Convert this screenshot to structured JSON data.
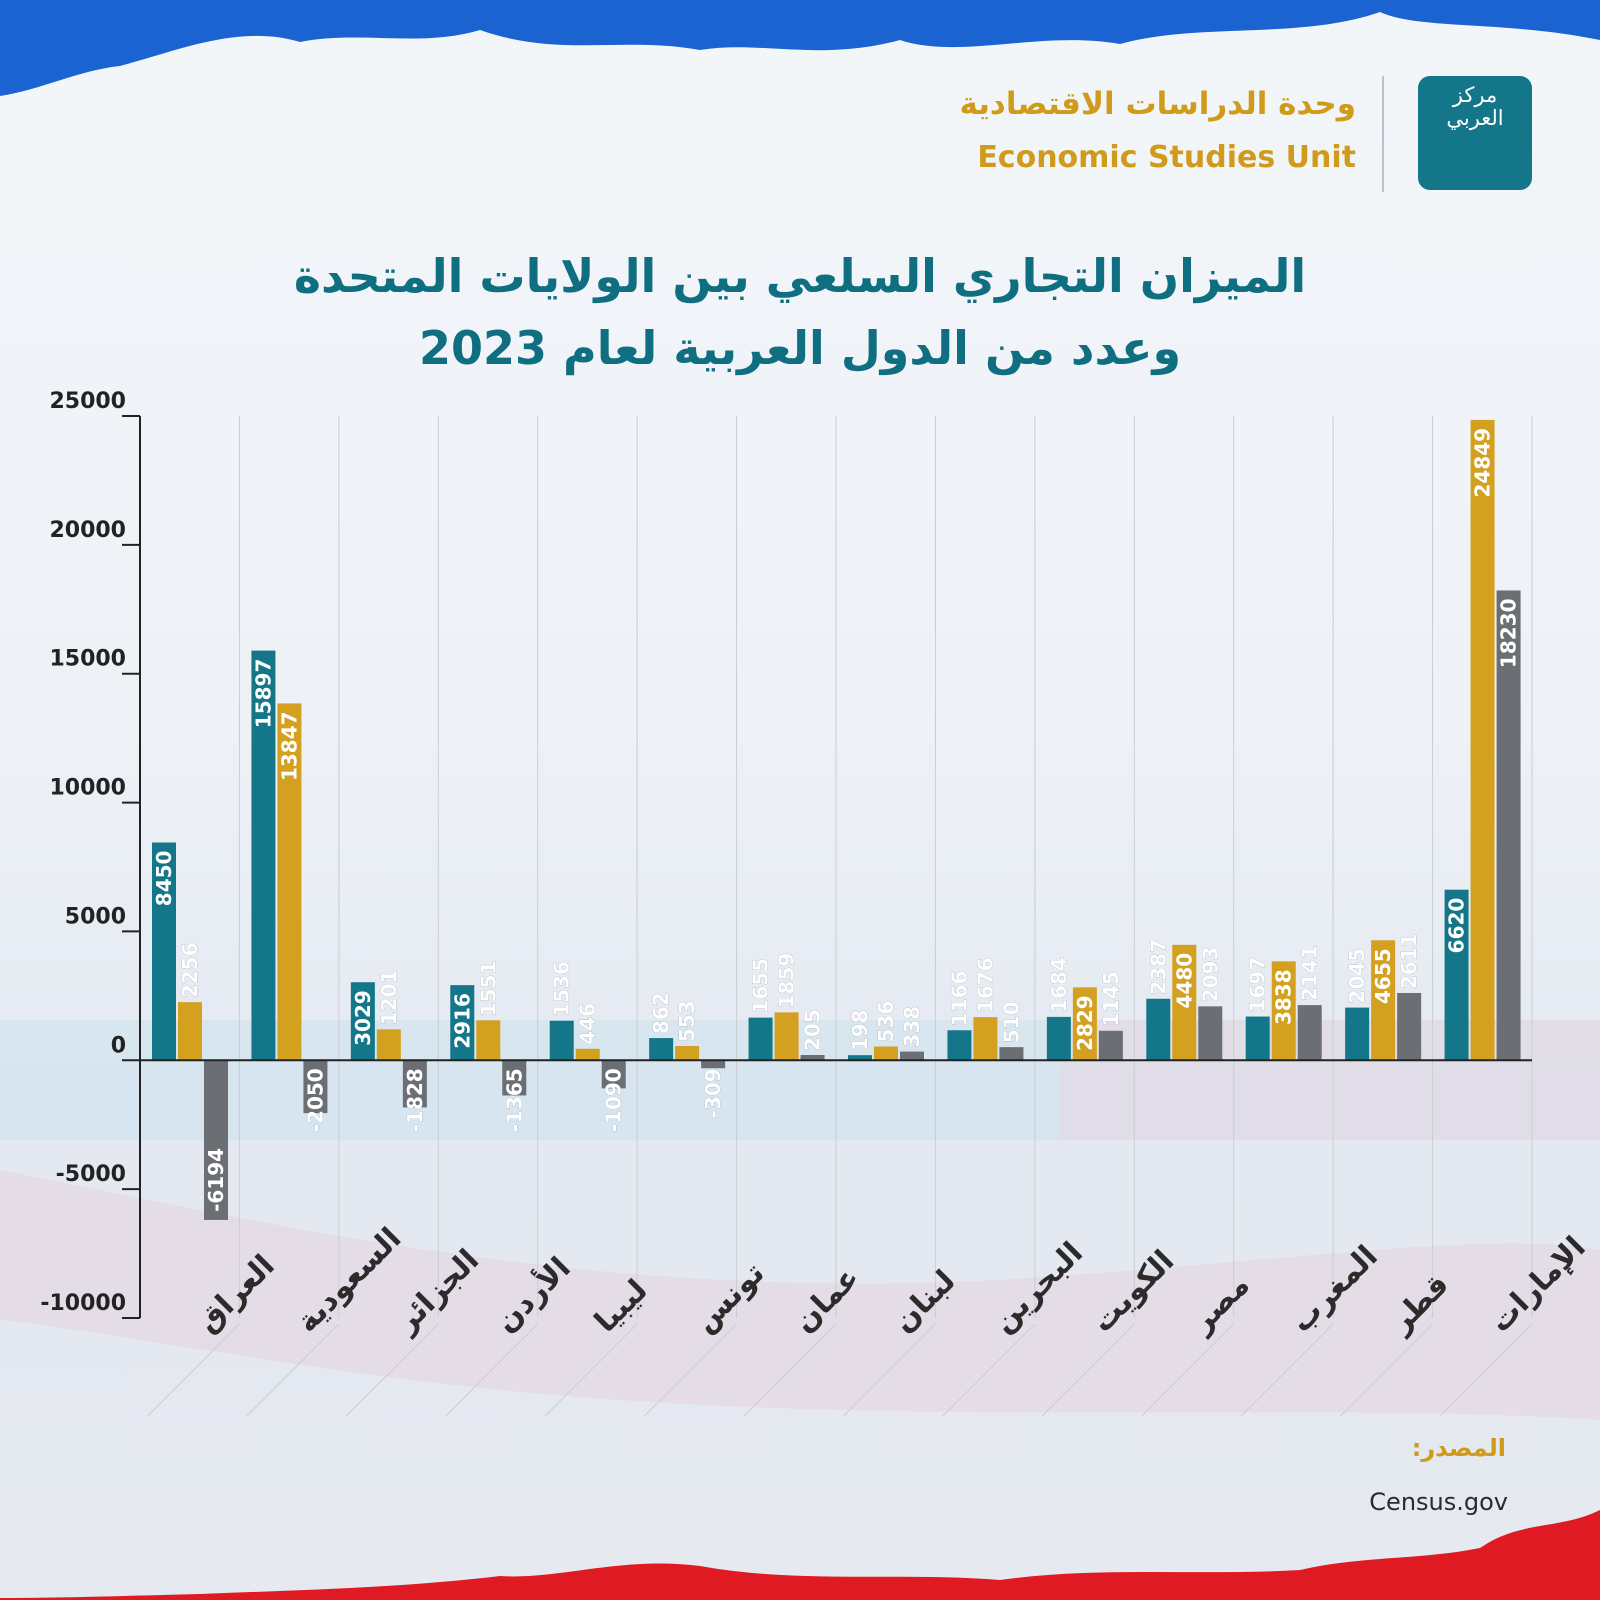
{
  "header": {
    "unit_ar": "وحدة الدراسات الاقتصادية",
    "unit_en": "Economic Studies Unit",
    "logo_text": "مركز العربي"
  },
  "title": {
    "line1": "الميزان التجاري السلعي بين الولايات المتحدة",
    "line2": "وعدد من الدول العربية لعام 2023"
  },
  "source": {
    "label": "المصدر:",
    "value": "Census.gov"
  },
  "colors": {
    "teal": "#137789",
    "gold": "#d4a020",
    "gray": "#6b6e73",
    "title": "#0f6f81",
    "accent_blue": "#1a63d1",
    "accent_red": "#e01a22"
  },
  "chart_data": {
    "type": "bar",
    "categories": [
      "العراق",
      "السعودية",
      "الجزائر",
      "الأردن",
      "ليبيا",
      "تونس",
      "عمان",
      "لبنان",
      "البحرين",
      "الكويت",
      "مصر",
      "المغرب",
      "قطر",
      "الإمارات"
    ],
    "series": [
      {
        "color": "#137789",
        "values": [
          8450,
          15897,
          3029,
          2916,
          1536,
          862,
          1655,
          198,
          1166,
          1684,
          2387,
          1697,
          2045,
          6620
        ]
      },
      {
        "color": "#d4a020",
        "values": [
          2256,
          13847,
          1201,
          1551,
          446,
          553,
          1859,
          536,
          1676,
          2829,
          4480,
          3838,
          4655,
          24849
        ]
      },
      {
        "color": "#6b6e73",
        "values": [
          -6194,
          -2050,
          -1828,
          -1365,
          -1090,
          -309,
          205,
          338,
          510,
          1145,
          2093,
          2141,
          2611,
          18230
        ]
      }
    ],
    "yticks": [
      25000,
      20000,
      15000,
      10000,
      5000,
      0,
      -5000,
      -10000
    ],
    "ylim": [
      -10000,
      25000
    ],
    "grid": "vertical"
  }
}
